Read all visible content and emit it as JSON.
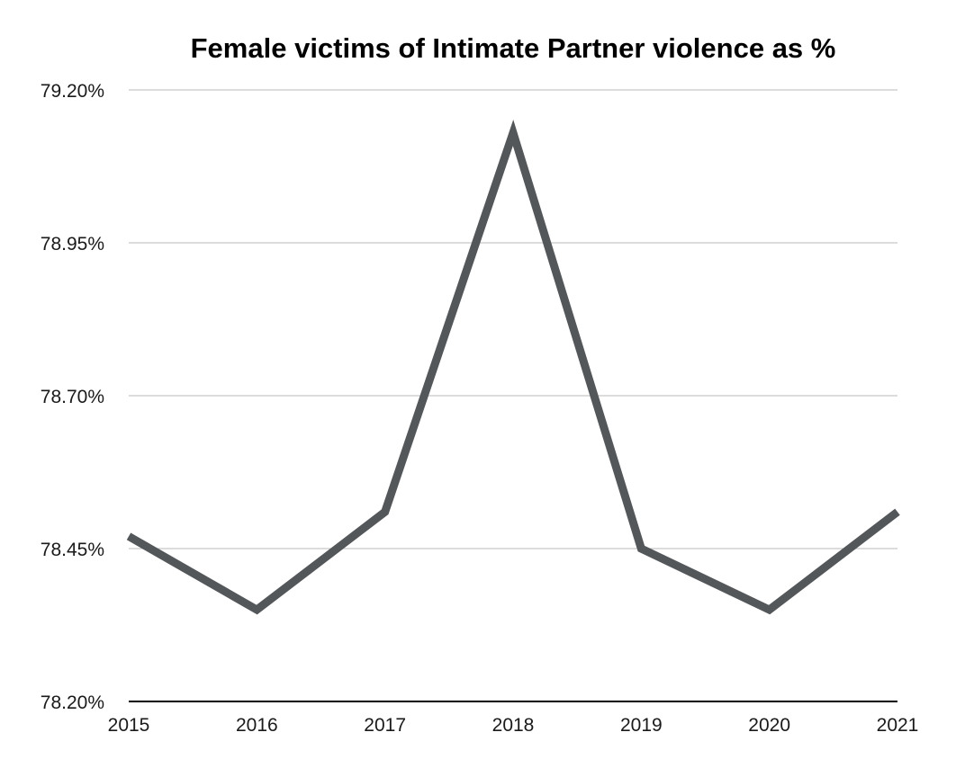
{
  "chart_data": {
    "type": "line",
    "title": "Female victims of Intimate Partner violence as %",
    "xlabel": "",
    "ylabel": "",
    "categories": [
      "2015",
      "2016",
      "2017",
      "2018",
      "2019",
      "2020",
      "2021"
    ],
    "series": [
      {
        "values": [
          78.47,
          78.35,
          78.51,
          79.13,
          78.45,
          78.35,
          78.51
        ],
        "color": "#54575a"
      }
    ],
    "ylim": [
      78.2,
      79.2
    ],
    "yticks": [
      78.2,
      78.45,
      78.7,
      78.95,
      79.2
    ],
    "ytick_labels": [
      "78.20%",
      "78.45%",
      "78.70%",
      "78.95%",
      "79.20%"
    ],
    "grid": "horizontal",
    "legend": "none"
  }
}
